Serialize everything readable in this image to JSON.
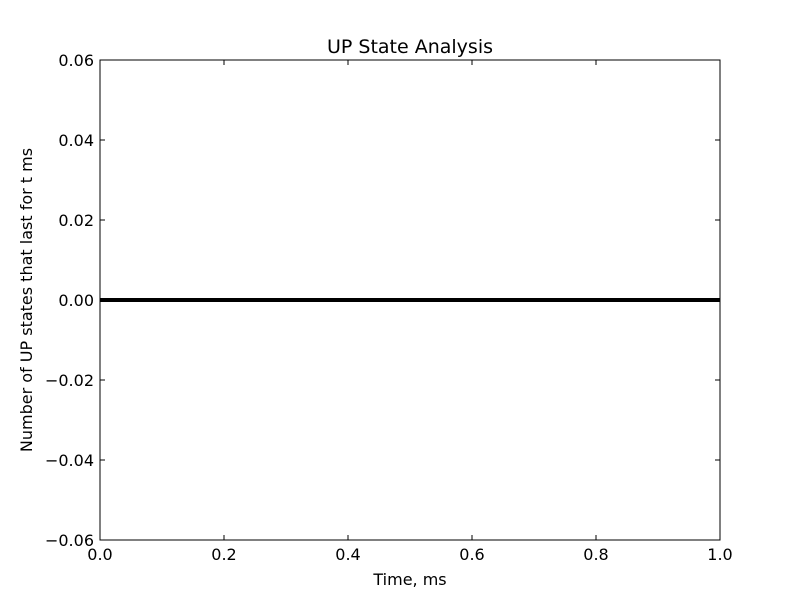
{
  "chart_data": {
    "type": "line",
    "title": "UP State Analysis",
    "xlabel": "Time, ms",
    "ylabel": "Number of UP states that last for t ms",
    "xlim": [
      0.0,
      1.0
    ],
    "ylim": [
      -0.06,
      0.06
    ],
    "xticks": [
      0.0,
      0.2,
      0.4,
      0.6,
      0.8,
      1.0
    ],
    "xtick_labels": [
      "0.0",
      "0.2",
      "0.4",
      "0.6",
      "0.8",
      "1.0"
    ],
    "yticks": [
      -0.06,
      -0.04,
      -0.02,
      0.0,
      0.02,
      0.04,
      0.06
    ],
    "ytick_labels": [
      "−0.06",
      "−0.04",
      "−0.02",
      "0.00",
      "0.02",
      "0.04",
      "0.06"
    ],
    "grid": false,
    "series": [
      {
        "x": [
          0.0,
          1.0
        ],
        "y": [
          0.0,
          0.0
        ],
        "color": "#000000"
      }
    ]
  }
}
